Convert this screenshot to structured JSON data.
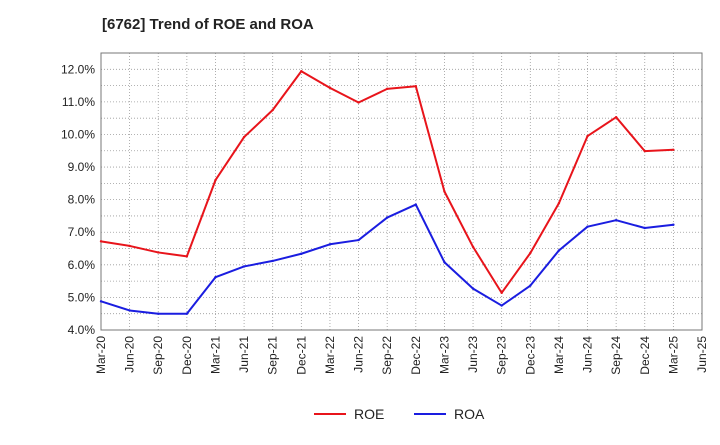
{
  "chart_data": {
    "type": "line",
    "title": "[6762]  Trend of ROE and ROA",
    "xlabel": "",
    "ylabel": "",
    "x": [
      "Mar-20",
      "Jun-20",
      "Sep-20",
      "Dec-20",
      "Mar-21",
      "Jun-21",
      "Sep-21",
      "Dec-21",
      "Mar-22",
      "Jun-22",
      "Sep-22",
      "Dec-22",
      "Mar-23",
      "Jun-23",
      "Sep-23",
      "Dec-23",
      "Mar-24",
      "Jun-24",
      "Sep-24",
      "Dec-24",
      "Mar-25",
      "Jun-25"
    ],
    "ylim": [
      4.0,
      12.5
    ],
    "yticks": [
      4.0,
      5.0,
      6.0,
      7.0,
      8.0,
      9.0,
      10.0,
      11.0,
      12.0
    ],
    "ytick_labels": [
      "4.0%",
      "5.0%",
      "6.0%",
      "7.0%",
      "8.0%",
      "9.0%",
      "10.0%",
      "11.0%",
      "12.0%"
    ],
    "grid": true,
    "legend_position": "bottom-center",
    "series": [
      {
        "name": "ROE",
        "color": "#e8141b",
        "values": [
          6.72,
          6.58,
          6.38,
          6.26,
          8.6,
          9.92,
          10.75,
          11.94,
          11.43,
          10.98,
          11.4,
          11.48,
          8.25,
          6.55,
          5.14,
          6.36,
          7.89,
          9.95,
          10.53,
          9.49,
          9.53,
          null
        ]
      },
      {
        "name": "ROA",
        "color": "#1a1de0",
        "values": [
          4.88,
          4.6,
          4.5,
          4.5,
          5.62,
          5.95,
          6.12,
          6.34,
          6.63,
          6.76,
          7.45,
          7.85,
          6.08,
          5.27,
          4.75,
          5.36,
          6.44,
          7.17,
          7.37,
          7.13,
          7.23,
          null
        ]
      }
    ]
  }
}
